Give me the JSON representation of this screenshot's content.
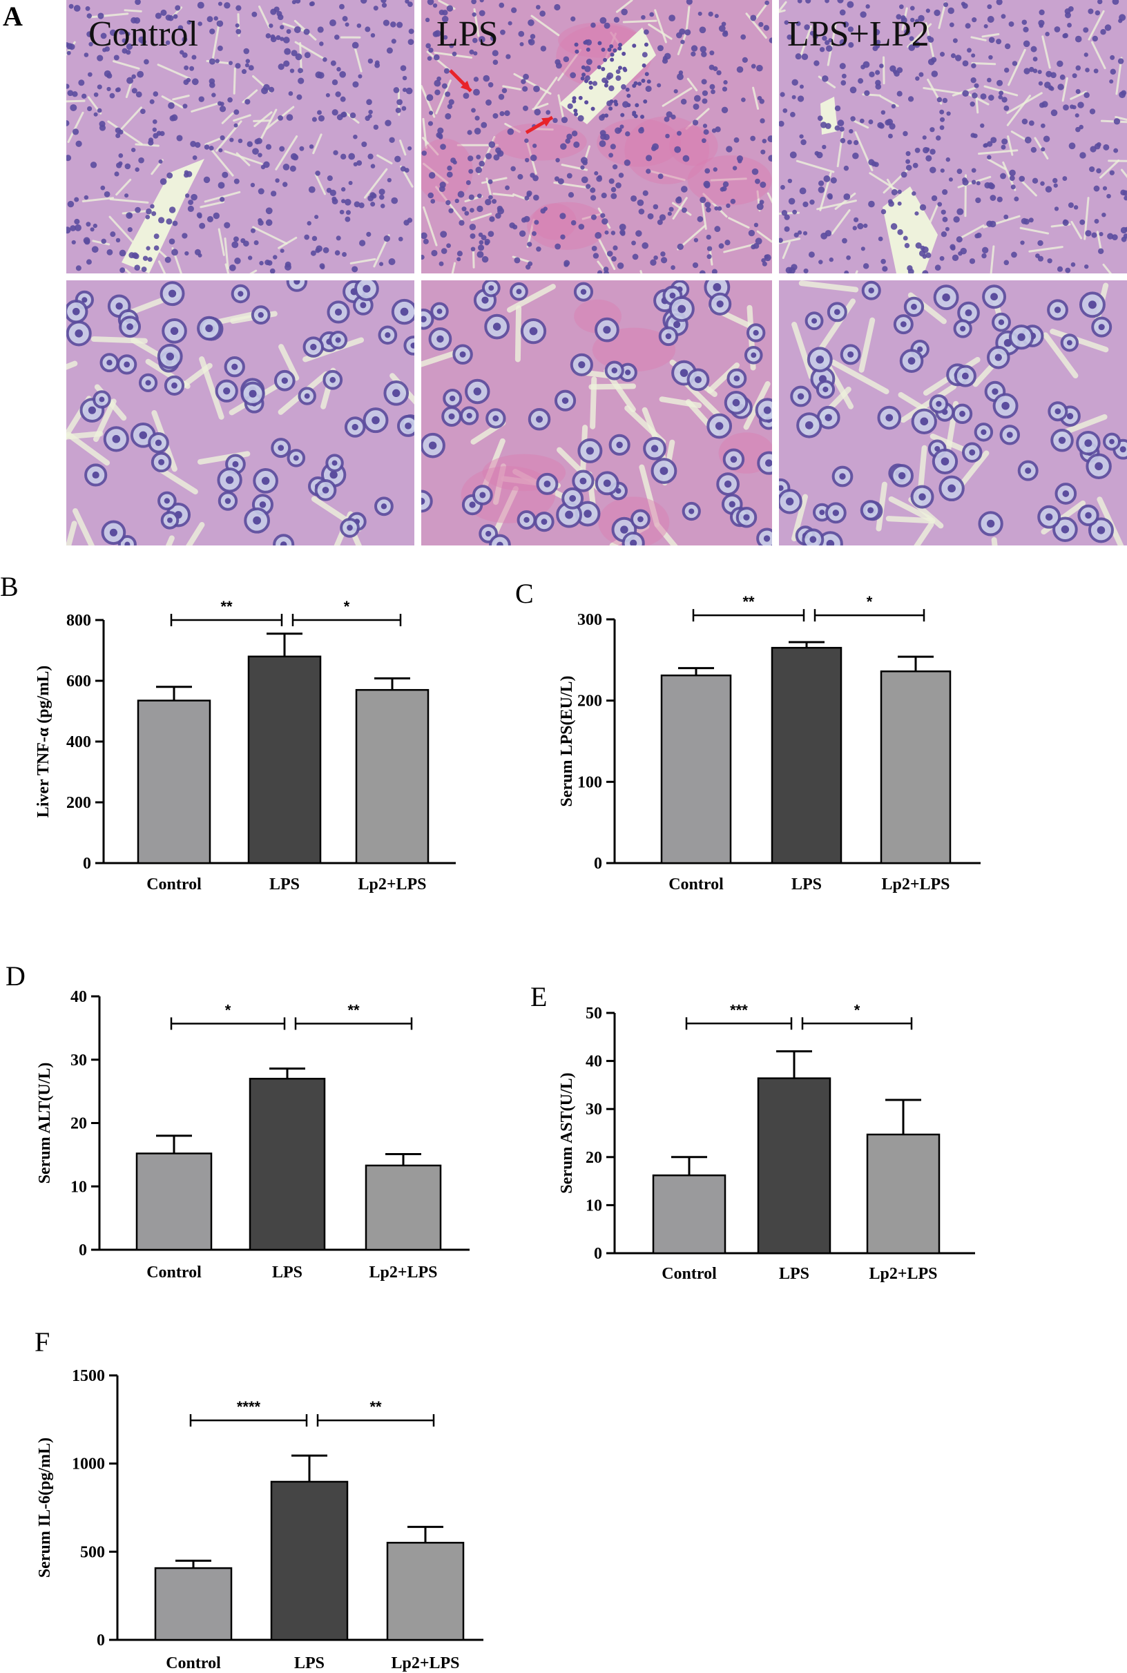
{
  "panel_a": {
    "letter": "A",
    "images": [
      {
        "label": "Control",
        "arrows": 0,
        "variant": "control"
      },
      {
        "label": "LPS",
        "arrows": 2,
        "variant": "lps"
      },
      {
        "label": "LPS+LP2",
        "arrows": 0,
        "variant": "lp2"
      }
    ],
    "colors": {
      "tissue": "#c9a3cf",
      "nuclei": "#5b4d9e",
      "vessel": "#eef2dc",
      "arrow": "#e8232a",
      "eosin": "#d97fb2"
    }
  },
  "chart_data": [
    {
      "panel": "B",
      "type": "bar",
      "ylabel": "Liver TNF-α (pg/mL)",
      "categories": [
        "Control",
        "LPS",
        "Lp2+LPS"
      ],
      "values": [
        535,
        680,
        570
      ],
      "errors": [
        45,
        75,
        38
      ],
      "colors": [
        "#9a9a9c",
        "#454545",
        "#9a9a9a"
      ],
      "ylim": [
        0,
        800
      ],
      "yticks": [
        0,
        200,
        400,
        600,
        800
      ],
      "significance": [
        {
          "from": 0,
          "to": 1,
          "label": "**",
          "y": 800
        },
        {
          "from": 1,
          "to": 2,
          "label": "*",
          "y": 800
        }
      ]
    },
    {
      "panel": "C",
      "type": "bar",
      "ylabel": "Serum LPS(EU/L)",
      "categories": [
        "Control",
        "LPS",
        "Lp2+LPS"
      ],
      "values": [
        231,
        265,
        236
      ],
      "errors": [
        9,
        7,
        18
      ],
      "colors": [
        "#9a9a9c",
        "#454545",
        "#9a9a9a"
      ],
      "ylim": [
        0,
        300
      ],
      "yticks": [
        0,
        100,
        200,
        300
      ],
      "significance": [
        {
          "from": 0,
          "to": 1,
          "label": "**",
          "y": 305
        },
        {
          "from": 1,
          "to": 2,
          "label": "*",
          "y": 305
        }
      ]
    },
    {
      "panel": "D",
      "type": "bar",
      "ylabel": "Serum ALT(U/L)",
      "categories": [
        "Control",
        "LPS",
        "Lp2+LPS"
      ],
      "values": [
        15.2,
        27,
        13.3
      ],
      "errors": [
        2.8,
        1.6,
        1.8
      ],
      "colors": [
        "#9a9a9c",
        "#454545",
        "#9a9a9a"
      ],
      "ylim": [
        0,
        40
      ],
      "yticks": [
        0,
        10,
        20,
        30,
        40
      ],
      "significance": [
        {
          "from": 0,
          "to": 1,
          "label": "*",
          "y": 35.7
        },
        {
          "from": 1,
          "to": 2,
          "label": "**",
          "y": 35.7
        }
      ]
    },
    {
      "panel": "E",
      "type": "bar",
      "ylabel": "Serum AST(U/L)",
      "categories": [
        "Control",
        "LPS",
        "Lp2+LPS"
      ],
      "values": [
        16.2,
        36.4,
        24.7
      ],
      "errors": [
        3.8,
        5.6,
        7.2
      ],
      "colors": [
        "#9a9a9c",
        "#454545",
        "#9a9a9a"
      ],
      "ylim": [
        0,
        50
      ],
      "yticks": [
        0,
        10,
        20,
        30,
        40,
        50
      ],
      "significance": [
        {
          "from": 0,
          "to": 1,
          "label": "***",
          "y": 47.8
        },
        {
          "from": 1,
          "to": 2,
          "label": "*",
          "y": 47.8
        }
      ]
    },
    {
      "panel": "F",
      "type": "bar",
      "ylabel": "Serum IL-6(pg/mL)",
      "categories": [
        "Control",
        "LPS",
        "Lp2+LPS"
      ],
      "values": [
        407,
        897,
        551
      ],
      "errors": [
        42,
        148,
        90
      ],
      "colors": [
        "#9a9a9c",
        "#454545",
        "#9a9a9a"
      ],
      "ylim": [
        0,
        1500
      ],
      "yticks": [
        0,
        500,
        1000,
        1500
      ],
      "significance": [
        {
          "from": 0,
          "to": 1,
          "label": "****",
          "y": 1245
        },
        {
          "from": 1,
          "to": 2,
          "label": "**",
          "y": 1245
        }
      ]
    }
  ]
}
